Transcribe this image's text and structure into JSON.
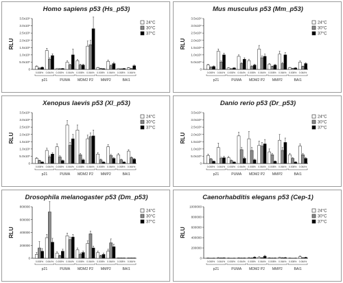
{
  "figure": {
    "legend_entries": [
      "24°C",
      "30°C",
      "37°C"
    ],
    "series_colors": [
      "#ffffff",
      "#8a8a8a",
      "#000000"
    ],
    "dose_labels": [
      "0.008%",
      "0.064%"
    ]
  },
  "chart_data": [
    {
      "type": "bar",
      "title": "Homo sapiens p53 (Hs_p53)",
      "ylabel": "RLU",
      "yticks": [
        "0",
        "5.0x10⁵",
        "1.0x10⁶",
        "1.5x10⁶",
        "2.0x10⁶",
        "2.5x10⁶",
        "3.0x10⁶",
        "3.5x10⁶"
      ],
      "ytick_values": [
        0,
        500000,
        1000000,
        1500000,
        2000000,
        2500000,
        3000000,
        3500000
      ],
      "ylim": [
        0,
        3500000
      ],
      "groups": [
        "p21",
        "PUMA",
        "MDM2 P2",
        "MMP2",
        "BAI1"
      ],
      "categories": [
        "p21 0.008%",
        "p21 0.064%",
        "PUMA 0.008%",
        "PUMA 0.064%",
        "MDM2 P2 0.008%",
        "MDM2 P2 0.064%",
        "MMP2 0.008%",
        "MMP2 0.064%",
        "BAI1 0.008%",
        "BAI1 0.064%"
      ],
      "series": [
        {
          "name": "24°C",
          "values": [
            200000,
            1300000,
            50000,
            500000,
            600000,
            1600000,
            120000,
            550000,
            50000,
            110000
          ]
        },
        {
          "name": "30°C",
          "values": [
            90000,
            700000,
            50000,
            300000,
            300000,
            1700000,
            70000,
            250000,
            40000,
            60000
          ]
        },
        {
          "name": "37°C",
          "values": [
            140000,
            950000,
            60000,
            1000000,
            300000,
            2800000,
            50000,
            400000,
            60000,
            250000
          ]
        }
      ],
      "errors": [
        [
          40000,
          150000,
          10000,
          90000,
          80000,
          350000,
          20000,
          100000,
          10000,
          20000
        ],
        [
          20000,
          100000,
          10000,
          60000,
          50000,
          300000,
          10000,
          60000,
          10000,
          10000
        ],
        [
          30000,
          120000,
          10000,
          400000,
          60000,
          800000,
          10000,
          80000,
          10000,
          50000
        ]
      ]
    },
    {
      "type": "bar",
      "title": "Mus musculus p53 (Mm_p53)",
      "ylabel": "RLU",
      "yticks": [
        "0",
        "5.0x10⁵",
        "1.0x10⁶",
        "1.5x10⁶",
        "2.0x10⁶",
        "2.5x10⁶",
        "3.0x10⁶",
        "3.5x10⁶"
      ],
      "ytick_values": [
        0,
        500000,
        1000000,
        1500000,
        2000000,
        2500000,
        3000000,
        3500000
      ],
      "ylim": [
        0,
        3500000
      ],
      "groups": [
        "p21",
        "PUMA",
        "MDM2 P2",
        "MMP2",
        "BAI1"
      ],
      "categories": [
        "p21 0.008%",
        "p21 0.064%",
        "PUMA 0.008%",
        "PUMA 0.064%",
        "MDM2 P2 0.008%",
        "MDM2 P2 0.064%",
        "MMP2 0.008%",
        "MMP2 0.064%",
        "BAI1 0.008%",
        "BAI1 0.064%"
      ],
      "series": [
        {
          "name": "24°C",
          "values": [
            300000,
            1250000,
            100000,
            900000,
            600000,
            1400000,
            350000,
            1050000,
            120000,
            500000
          ]
        },
        {
          "name": "30°C",
          "values": [
            150000,
            500000,
            50000,
            400000,
            200000,
            800000,
            200000,
            400000,
            70000,
            200000
          ]
        },
        {
          "name": "37°C",
          "values": [
            200000,
            1000000,
            100000,
            700000,
            300000,
            900000,
            300000,
            1000000,
            100000,
            400000
          ]
        }
      ],
      "errors": [
        [
          50000,
          150000,
          20000,
          100000,
          100000,
          250000,
          50000,
          200000,
          20000,
          80000
        ],
        [
          30000,
          80000,
          10000,
          60000,
          40000,
          120000,
          30000,
          80000,
          10000,
          30000
        ],
        [
          40000,
          120000,
          20000,
          100000,
          60000,
          150000,
          40000,
          150000,
          20000,
          60000
        ]
      ]
    },
    {
      "type": "bar",
      "title": "Xenopus laevis p53 (Xl_p53)",
      "ylabel": "RLU",
      "yticks": [
        "0",
        "5.0x10⁵",
        "1.0x10⁶",
        "1.5x10⁶",
        "2.0x10⁶",
        "2.5x10⁶",
        "3.0x10⁶",
        "3.5x10⁶"
      ],
      "ytick_values": [
        0,
        500000,
        1000000,
        1500000,
        2000000,
        2500000,
        3000000,
        3500000
      ],
      "ylim": [
        0,
        3500000
      ],
      "groups": [
        "p21",
        "PUMA",
        "MDM2 P2",
        "MMP2",
        "BAI1"
      ],
      "categories": [
        "p21 0.008%",
        "p21 0.064%",
        "PUMA 0.008%",
        "PUMA 0.064%",
        "MDM2 P2 0.008%",
        "MDM2 P2 0.064%",
        "MMP2 0.008%",
        "MMP2 0.064%",
        "BAI1 0.008%",
        "BAI1 0.064%"
      ],
      "series": [
        {
          "name": "24°C",
          "values": [
            350000,
            900000,
            1150000,
            2650000,
            2300000,
            1700000,
            650000,
            1150000,
            600000,
            850000
          ]
        },
        {
          "name": "30°C",
          "values": [
            200000,
            450000,
            450000,
            1250000,
            600000,
            1850000,
            250000,
            550000,
            250000,
            400000
          ]
        },
        {
          "name": "37°C",
          "values": [
            100000,
            650000,
            200000,
            1700000,
            250000,
            1900000,
            100000,
            350000,
            100000,
            300000
          ]
        }
      ],
      "errors": [
        [
          50000,
          150000,
          200000,
          300000,
          350000,
          250000,
          100000,
          150000,
          100000,
          100000
        ],
        [
          30000,
          80000,
          80000,
          200000,
          100000,
          250000,
          50000,
          80000,
          40000,
          60000
        ],
        [
          20000,
          100000,
          40000,
          300000,
          50000,
          400000,
          20000,
          60000,
          20000,
          50000
        ]
      ]
    },
    {
      "type": "bar",
      "title": "Danio rerio p53 (Dr_p53)",
      "ylabel": "RLU",
      "yticks": [
        "0",
        "5.0x10⁵",
        "1.0x10⁶",
        "1.5x10⁶",
        "2.0x10⁶",
        "2.5x10⁶",
        "3.0x10⁶",
        "3.5x10⁶"
      ],
      "ytick_values": [
        0,
        500000,
        1000000,
        1500000,
        2000000,
        2500000,
        3000000,
        3500000
      ],
      "ylim": [
        0,
        3500000
      ],
      "groups": [
        "p21",
        "PUMA",
        "MDM2 P2",
        "MMP2",
        "BAI1"
      ],
      "categories": [
        "p21 0.008%",
        "p21 0.064%",
        "PUMA 0.008%",
        "PUMA 0.064%",
        "MDM2 P2 0.008%",
        "MDM2 P2 0.064%",
        "MMP2 0.008%",
        "MMP2 0.064%",
        "BAI1 0.008%",
        "BAI1 0.064%"
      ],
      "series": [
        {
          "name": "24°C",
          "values": [
            550000,
            1100000,
            400000,
            1900000,
            1700000,
            1250000,
            800000,
            1600000,
            600000,
            1200000
          ]
        },
        {
          "name": "30°C",
          "values": [
            300000,
            350000,
            200000,
            950000,
            900000,
            1200000,
            600000,
            900000,
            350000,
            600000
          ]
        },
        {
          "name": "37°C",
          "values": [
            150000,
            400000,
            100000,
            350000,
            250000,
            1350000,
            150000,
            1450000,
            100000,
            350000
          ]
        }
      ],
      "errors": [
        [
          100000,
          300000,
          80000,
          250000,
          500000,
          300000,
          200000,
          400000,
          100000,
          150000
        ],
        [
          50000,
          80000,
          40000,
          150000,
          200000,
          250000,
          100000,
          200000,
          60000,
          100000
        ],
        [
          30000,
          100000,
          20000,
          80000,
          50000,
          300000,
          30000,
          300000,
          20000,
          60000
        ]
      ]
    },
    {
      "type": "bar",
      "title": "Drosophila melanogaster p53 (Dm_p53)",
      "ylabel": "RLU",
      "yticks": [
        "0",
        "200000",
        "400000",
        "600000",
        "800000"
      ],
      "ytick_values": [
        0,
        200000,
        400000,
        600000,
        800000
      ],
      "ylim": [
        0,
        800000
      ],
      "groups": [
        "p21",
        "PUMA",
        "MDM2 P2",
        "MMP2",
        "BAI1"
      ],
      "categories": [
        "p21 0.008%",
        "p21 0.064%",
        "PUMA 0.008%",
        "PUMA 0.064%",
        "MDM2 P2 0.008%",
        "MDM2 P2 0.064%",
        "MMP2 0.008%",
        "MMP2 0.064%",
        "BAI1 0.008%",
        "BAI1 0.064%"
      ],
      "series": [
        {
          "name": "24°C",
          "values": [
            60000,
            320000,
            80000,
            350000,
            130000,
            230000,
            90000,
            110000,
            5000,
            5000
          ]
        },
        {
          "name": "30°C",
          "values": [
            160000,
            720000,
            40000,
            290000,
            60000,
            380000,
            40000,
            240000,
            5000,
            5000
          ]
        },
        {
          "name": "37°C",
          "values": [
            110000,
            250000,
            110000,
            330000,
            90000,
            160000,
            60000,
            180000,
            5000,
            5000
          ]
        }
      ],
      "errors": [
        [
          30000,
          50000,
          20000,
          40000,
          30000,
          40000,
          20000,
          30000,
          1000,
          1000
        ],
        [
          100000,
          160000,
          10000,
          40000,
          20000,
          40000,
          10000,
          60000,
          1000,
          1000
        ],
        [
          40000,
          60000,
          30000,
          40000,
          20000,
          30000,
          20000,
          40000,
          1000,
          1000
        ]
      ]
    },
    {
      "type": "bar",
      "title": "Caenorhabditis elegans p53 (Cep-1)",
      "ylabel": "RLU",
      "yticks": [
        "0",
        "200000",
        "400000",
        "600000",
        "800000",
        "1000000"
      ],
      "ytick_values": [
        0,
        200000,
        400000,
        600000,
        800000,
        1000000
      ],
      "ylim": [
        0,
        1000000
      ],
      "groups": [
        "p21",
        "PUMA",
        "MDM2 P2",
        "MMP2",
        "BAI1"
      ],
      "categories": [
        "p21 0.008%",
        "p21 0.064%",
        "PUMA 0.008%",
        "PUMA 0.064%",
        "MDM2 P2 0.008%",
        "MDM2 P2 0.064%",
        "MMP2 0.008%",
        "MMP2 0.064%",
        "BAI1 0.008%",
        "BAI1 0.064%"
      ],
      "series": [
        {
          "name": "24°C",
          "values": [
            5000,
            10000,
            5000,
            8000,
            10000,
            20000,
            8000,
            15000,
            5000,
            30000
          ]
        },
        {
          "name": "30°C",
          "values": [
            3000,
            6000,
            3000,
            5000,
            6000,
            10000,
            5000,
            10000,
            3000,
            10000
          ]
        },
        {
          "name": "37°C",
          "values": [
            4000,
            8000,
            4000,
            6000,
            20000,
            40000,
            6000,
            12000,
            4000,
            15000
          ]
        }
      ],
      "errors": [
        [
          2000,
          5000,
          2000,
          4000,
          5000,
          10000,
          4000,
          6000,
          2000,
          15000
        ],
        [
          1000,
          3000,
          1000,
          2000,
          3000,
          5000,
          2000,
          4000,
          1000,
          5000
        ],
        [
          2000,
          4000,
          2000,
          3000,
          8000,
          15000,
          3000,
          5000,
          2000,
          8000
        ]
      ]
    }
  ]
}
